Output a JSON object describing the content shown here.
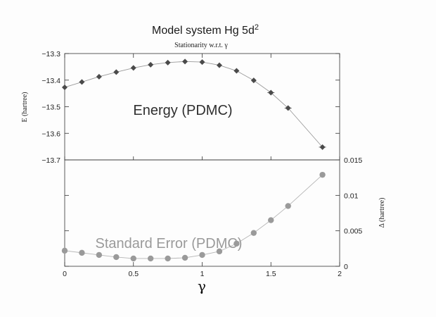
{
  "title": "Model system Hg 5d",
  "title_sup": "2",
  "subtitle": "Stationarity w.r.t. γ",
  "chart_data": [
    {
      "type": "line",
      "panel": "top",
      "annotation": "Energy (PDMC)",
      "ylabel": "E (hartree)",
      "xlabel": "",
      "xlim": [
        0,
        2
      ],
      "ylim": [
        -13.7,
        -13.3
      ],
      "yticks": [
        -13.3,
        -13.4,
        -13.5,
        -13.6,
        -13.7
      ],
      "ytick_labels": [
        "−13.3",
        "−13.4",
        "−13.5",
        "−13.6",
        "−13.7"
      ],
      "marker": "diamond",
      "color": "#4a4a4a",
      "x": [
        0,
        0.125,
        0.25,
        0.375,
        0.5,
        0.625,
        0.75,
        0.875,
        1.0,
        1.125,
        1.25,
        1.375,
        1.5,
        1.625,
        1.875
      ],
      "y": [
        -13.427,
        -13.407,
        -13.387,
        -13.37,
        -13.354,
        -13.342,
        -13.334,
        -13.33,
        -13.332,
        -13.344,
        -13.365,
        -13.401,
        -13.447,
        -13.505,
        -13.652
      ]
    },
    {
      "type": "scatter",
      "panel": "bottom",
      "annotation": "Standard Error (PDMC)",
      "ylabel": "Δ (hartree)",
      "xlabel": "γ",
      "xlim": [
        0,
        2
      ],
      "ylim": [
        0,
        0.015
      ],
      "xticks": [
        0,
        0.5,
        1,
        1.5,
        2
      ],
      "xtick_labels": [
        "0",
        "0.5",
        "1",
        "1.5",
        "2"
      ],
      "yticks": [
        0,
        0.005,
        0.01,
        0.015
      ],
      "ytick_labels": [
        "0",
        "0.005",
        "0.01",
        "0.015"
      ],
      "marker": "circle",
      "color": "#9a9a9a",
      "x": [
        0,
        0.125,
        0.25,
        0.375,
        0.5,
        0.625,
        0.75,
        0.875,
        1.0,
        1.125,
        1.25,
        1.375,
        1.5,
        1.625,
        1.875
      ],
      "y": [
        0.0022,
        0.0019,
        0.0016,
        0.0013,
        0.0011,
        0.0011,
        0.0011,
        0.0012,
        0.0016,
        0.0021,
        0.0032,
        0.0047,
        0.0065,
        0.0085,
        0.0129
      ]
    }
  ]
}
